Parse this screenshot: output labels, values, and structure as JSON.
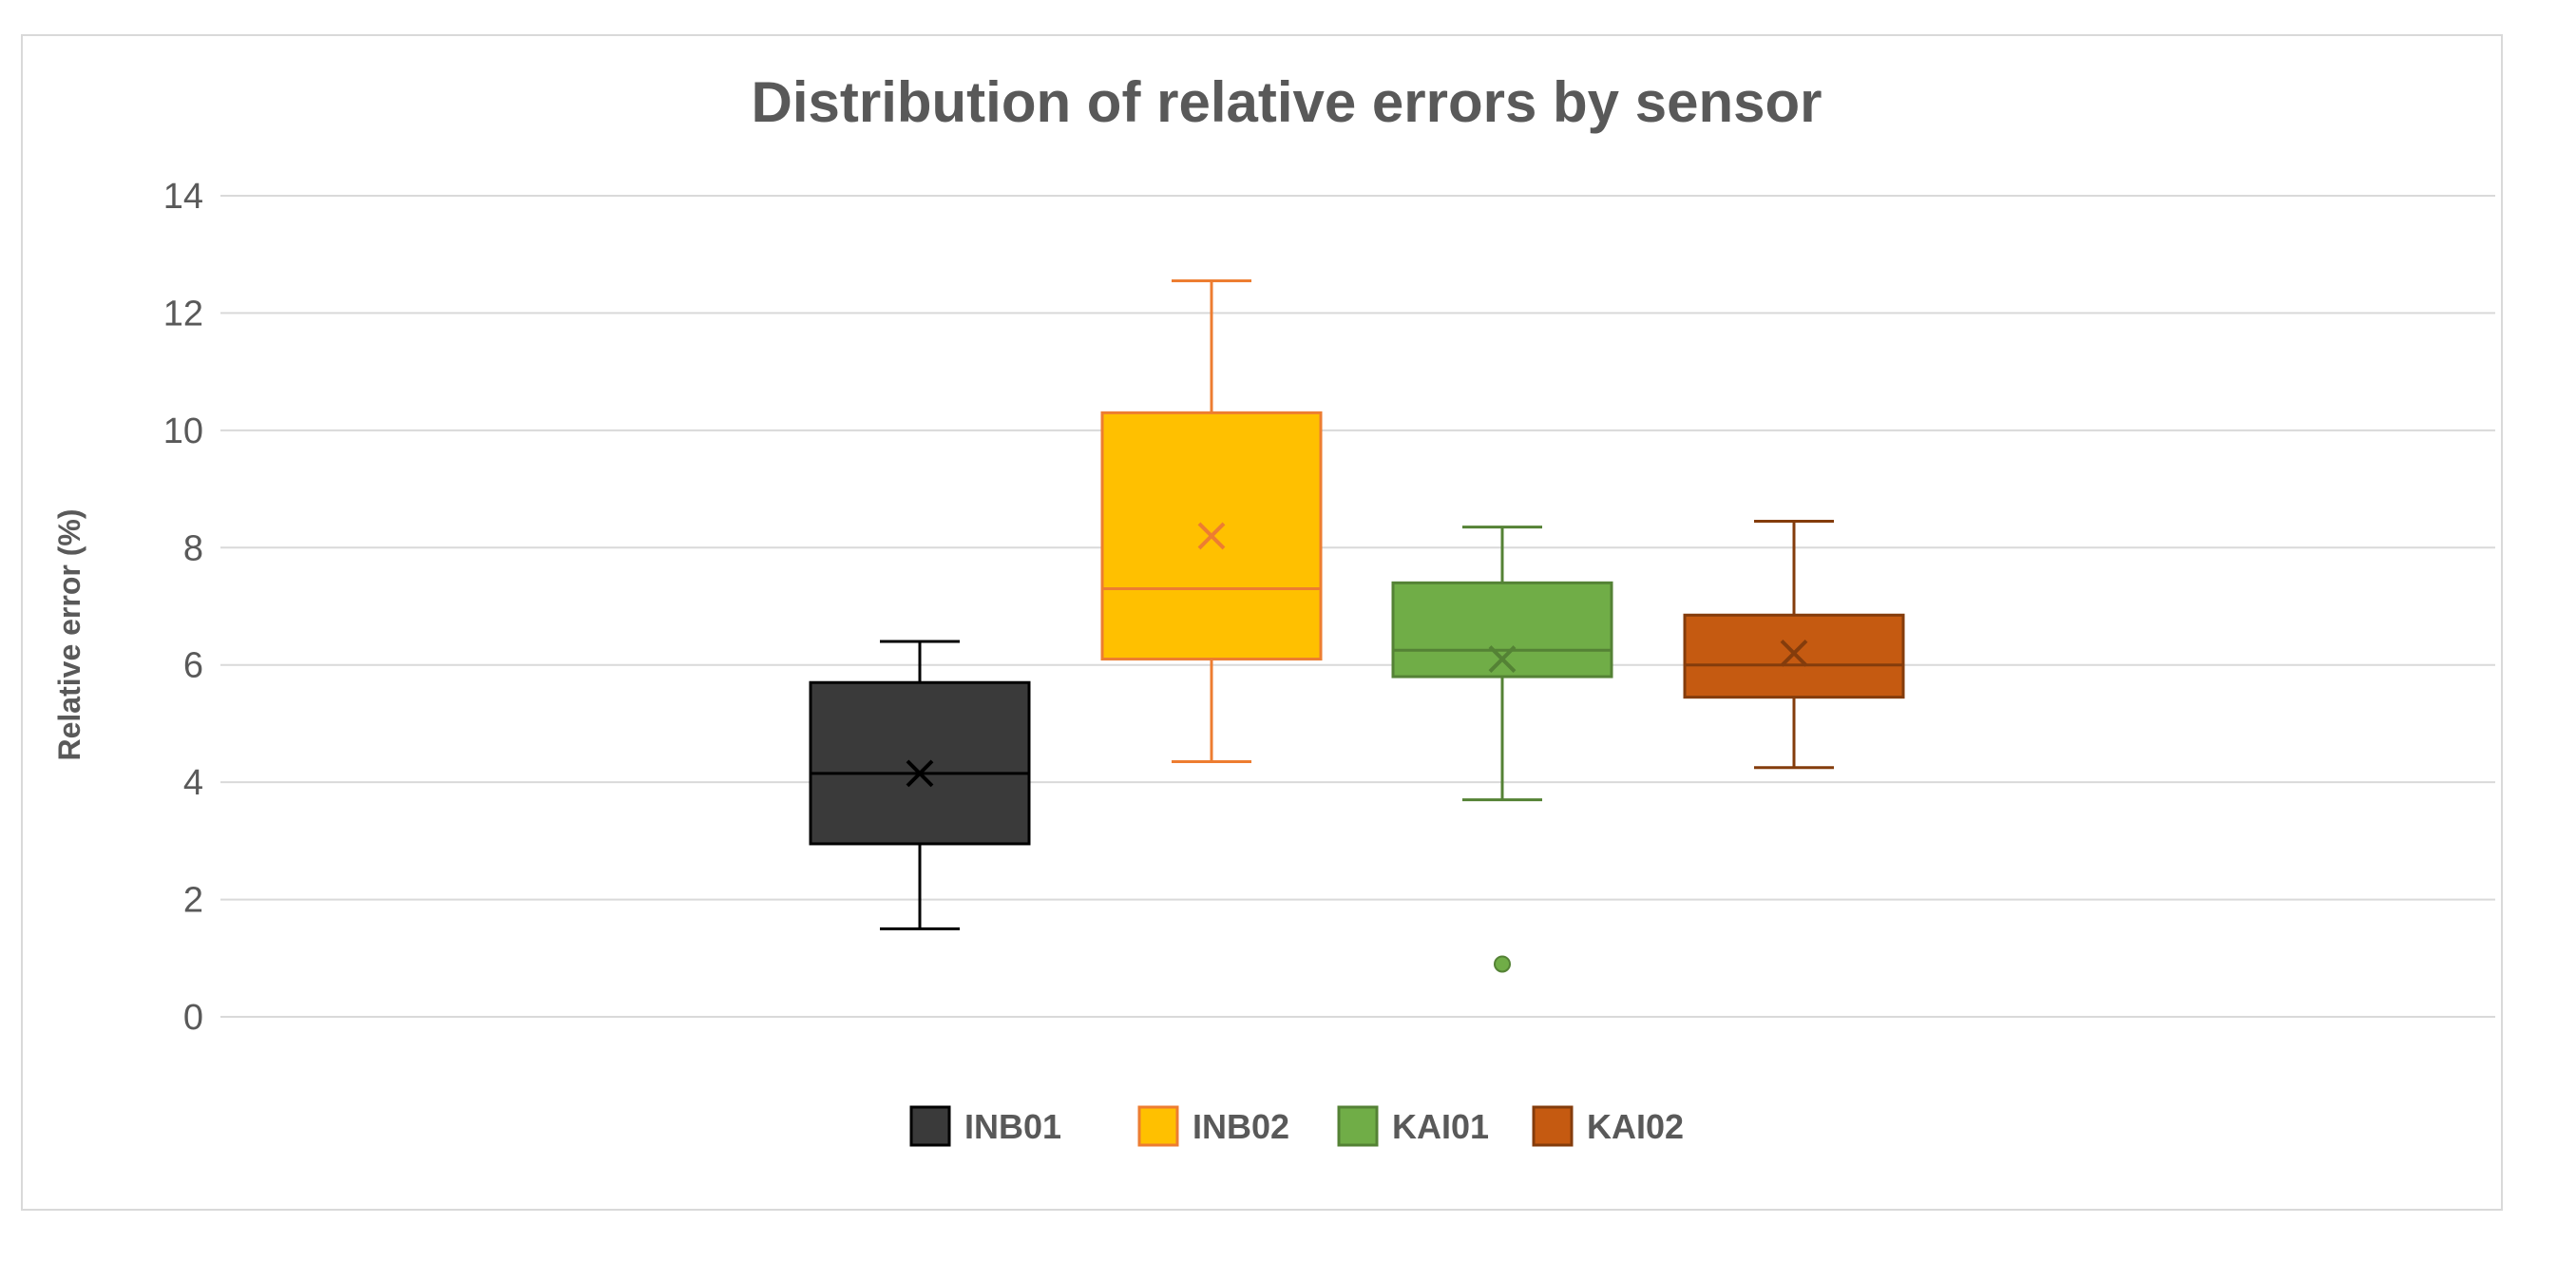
{
  "chart_data": {
    "type": "boxplot",
    "title": "Distribution of relative errors by sensor",
    "xlabel": "",
    "ylabel": "Relative error (%)",
    "ylim": [
      0,
      14
    ],
    "y_ticks": [
      0,
      2,
      4,
      6,
      8,
      10,
      12,
      14
    ],
    "grid": true,
    "legend_position": "bottom",
    "series": [
      {
        "name": "INB01",
        "color": "#3a3a3a",
        "line_color": "#000000",
        "min": 1.5,
        "q1": 2.95,
        "median": 4.15,
        "q3": 5.7,
        "max": 6.4,
        "mean": 4.15,
        "outliers": []
      },
      {
        "name": "INB02",
        "color": "#ffc000",
        "line_color": "#ed7d31",
        "min": 4.35,
        "q1": 6.1,
        "median": 7.3,
        "q3": 10.3,
        "max": 12.55,
        "mean": 8.2,
        "outliers": []
      },
      {
        "name": "KAI01",
        "color": "#70ad47",
        "line_color": "#548235",
        "min": 3.7,
        "q1": 5.8,
        "median": 6.25,
        "q3": 7.4,
        "max": 8.35,
        "mean": 6.1,
        "outliers": [
          0.9
        ]
      },
      {
        "name": "KAI02",
        "color": "#c55a11",
        "line_color": "#843c0c",
        "min": 4.25,
        "q1": 5.45,
        "median": 6.0,
        "q3": 6.85,
        "max": 8.45,
        "mean": 6.2,
        "outliers": []
      }
    ]
  }
}
